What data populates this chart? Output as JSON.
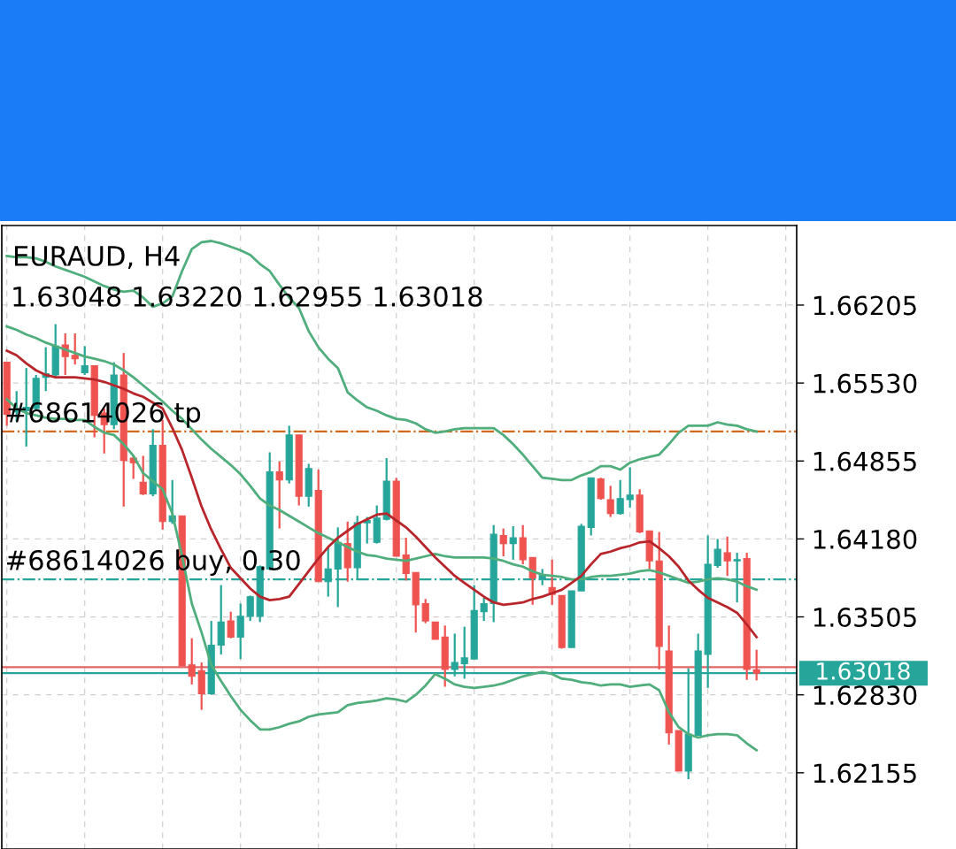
{
  "chart_data": {
    "type": "candlestick",
    "title": "EURAUD, H4",
    "subtitle": "1.63048 1.63220 1.62955 1.63018",
    "categories": [
      null,
      null,
      null,
      null,
      null,
      null,
      null,
      null,
      null,
      null,
      null,
      null,
      null,
      null,
      null,
      null,
      null,
      null,
      null,
      null,
      null,
      null,
      null,
      null,
      null,
      null,
      null,
      null,
      null,
      null,
      null,
      null,
      null,
      null,
      null,
      null,
      null,
      null,
      null,
      null,
      null,
      null,
      null,
      null,
      null,
      null,
      null,
      null,
      null,
      null,
      null,
      null,
      null,
      null,
      null,
      null,
      null,
      null,
      null,
      null,
      null,
      null,
      null,
      null,
      null,
      null,
      null,
      null,
      null,
      null,
      null,
      null,
      null,
      null,
      null,
      null,
      null,
      null
    ],
    "ohlc": [
      [
        1.6571,
        1.6571,
        1.6516,
        1.6526
      ],
      [
        1.6528,
        1.6546,
        1.652,
        1.653
      ],
      [
        1.6529,
        1.6566,
        1.6498,
        1.6532
      ],
      [
        1.6531,
        1.656,
        1.653,
        1.6557
      ],
      [
        1.6558,
        1.6584,
        1.6546,
        1.6561
      ],
      [
        1.656,
        1.6604,
        1.6557,
        1.6585
      ],
      [
        1.6586,
        1.6596,
        1.656,
        1.6576
      ],
      [
        1.6577,
        1.6596,
        1.6569,
        1.6574
      ],
      [
        1.6562,
        1.6585,
        1.656,
        1.6568
      ],
      [
        1.6568,
        1.6568,
        1.6506,
        1.6525
      ],
      [
        1.6527,
        1.6531,
        1.6492,
        1.6517
      ],
      [
        1.6517,
        1.6571,
        1.6513,
        1.656
      ],
      [
        1.656,
        1.6579,
        1.6446,
        1.6486
      ],
      [
        1.6488,
        1.649,
        1.647,
        1.6484
      ],
      [
        1.6467,
        1.649,
        1.6456,
        1.6457
      ],
      [
        1.6457,
        1.6513,
        1.6455,
        1.6499
      ],
      [
        1.6499,
        1.6521,
        1.6426,
        1.6433
      ],
      [
        1.6433,
        1.6469,
        1.6431,
        1.6438
      ],
      [
        1.6438,
        1.6438,
        1.6308,
        1.6308
      ],
      [
        1.6309,
        1.6332,
        1.6292,
        1.6299
      ],
      [
        1.6304,
        1.6311,
        1.627,
        1.6284
      ],
      [
        1.6284,
        1.6347,
        1.6283,
        1.6326
      ],
      [
        1.6326,
        1.6378,
        1.6318,
        1.6346
      ],
      [
        1.6347,
        1.6355,
        1.6332,
        1.6333
      ],
      [
        1.6333,
        1.6362,
        1.6314,
        1.6351
      ],
      [
        1.6351,
        1.6369,
        1.6347,
        1.6368
      ],
      [
        1.6351,
        1.6395,
        1.6346,
        1.6394
      ],
      [
        1.6392,
        1.6493,
        1.6391,
        1.6476
      ],
      [
        1.6476,
        1.6485,
        1.6427,
        1.6469
      ],
      [
        1.6469,
        1.6516,
        1.6466,
        1.6508
      ],
      [
        1.6508,
        1.6508,
        1.6447,
        1.6455
      ],
      [
        1.6455,
        1.6483,
        1.6446,
        1.6479
      ],
      [
        1.646,
        1.6478,
        1.6381,
        1.6381
      ],
      [
        1.6381,
        1.6411,
        1.6368,
        1.6392
      ],
      [
        1.6392,
        1.6428,
        1.6359,
        1.6415
      ],
      [
        1.6414,
        1.6433,
        1.6381,
        1.6393
      ],
      [
        1.6393,
        1.6438,
        1.6383,
        1.6432
      ],
      [
        1.6432,
        1.6437,
        1.6414,
        1.6434
      ],
      [
        1.6415,
        1.6447,
        1.6414,
        1.6436
      ],
      [
        1.6435,
        1.6488,
        1.6434,
        1.6468
      ],
      [
        1.6468,
        1.6471,
        1.6403,
        1.6403
      ],
      [
        1.6404,
        1.6419,
        1.6382,
        1.6388
      ],
      [
        1.6389,
        1.6389,
        1.6337,
        1.6361
      ],
      [
        1.6362,
        1.6366,
        1.6345,
        1.6347
      ],
      [
        1.6346,
        1.6346,
        1.6331,
        1.6331
      ],
      [
        1.6333,
        1.6343,
        1.629,
        1.6305
      ],
      [
        1.6305,
        1.6336,
        1.6299,
        1.6311
      ],
      [
        1.631,
        1.6342,
        1.6297,
        1.6315
      ],
      [
        1.6314,
        1.6378,
        1.6314,
        1.6356
      ],
      [
        1.6355,
        1.6367,
        1.6347,
        1.6362
      ],
      [
        1.6362,
        1.643,
        1.6346,
        1.6422
      ],
      [
        1.6421,
        1.6427,
        1.6403,
        1.6414
      ],
      [
        1.6414,
        1.6429,
        1.64,
        1.6419
      ],
      [
        1.6419,
        1.643,
        1.6396,
        1.64
      ],
      [
        1.6402,
        1.6402,
        1.6361,
        1.6384
      ],
      [
        1.6383,
        1.6392,
        1.6378,
        1.6387
      ],
      [
        1.6376,
        1.64,
        1.6361,
        1.637
      ],
      [
        1.6369,
        1.6369,
        1.6323,
        1.6324
      ],
      [
        1.6324,
        1.6373,
        1.6324,
        1.6373
      ],
      [
        1.6373,
        1.6431,
        1.6373,
        1.6429
      ],
      [
        1.6428,
        1.6471,
        1.6421,
        1.6471
      ],
      [
        1.647,
        1.6471,
        1.6452,
        1.6453
      ],
      [
        1.6452,
        1.6464,
        1.6437,
        1.644
      ],
      [
        1.644,
        1.6469,
        1.6439,
        1.6453
      ],
      [
        1.6452,
        1.648,
        1.6445,
        1.6456
      ],
      [
        1.6456,
        1.6461,
        1.6423,
        1.6424
      ],
      [
        1.6425,
        1.6425,
        1.6392,
        1.6399
      ],
      [
        1.6399,
        1.6424,
        1.6305,
        1.6325
      ],
      [
        1.6321,
        1.6343,
        1.624,
        1.625
      ],
      [
        1.6252,
        1.6252,
        1.6217,
        1.6217
      ],
      [
        1.6217,
        1.6306,
        1.621,
        1.6249
      ],
      [
        1.6248,
        1.6336,
        1.6248,
        1.6321
      ],
      [
        1.6318,
        1.6421,
        1.6289,
        1.6396
      ],
      [
        1.6395,
        1.6418,
        1.6393,
        1.6409
      ],
      [
        1.6406,
        1.642,
        1.6386,
        1.6399
      ],
      [
        1.6399,
        1.6406,
        1.6363,
        1.64
      ],
      [
        1.6401,
        1.6406,
        1.6296,
        1.6305
      ],
      [
        1.63048,
        1.6322,
        1.62955,
        1.63018
      ]
    ],
    "colors": [
      "#ef5350",
      "#26a69a",
      "#26a69a",
      "#26a69a",
      "#26a69a",
      "#26a69a",
      "#ef5350",
      "#ef5350",
      "#26a69a",
      "#ef5350",
      "#ef5350",
      "#26a69a",
      "#ef5350",
      "#ef5350",
      "#ef5350",
      "#26a69a",
      "#ef5350",
      "#26a69a",
      "#ef5350",
      "#ef5350",
      "#ef5350",
      "#26a69a",
      "#26a69a",
      "#ef5350",
      "#26a69a",
      "#26a69a",
      "#26a69a",
      "#26a69a",
      "#ef5350",
      "#26a69a",
      "#ef5350",
      "#26a69a",
      "#ef5350",
      "#26a69a",
      "#26a69a",
      "#ef5350",
      "#26a69a",
      "#26a69a",
      "#26a69a",
      "#26a69a",
      "#ef5350",
      "#ef5350",
      "#ef5350",
      "#ef5350",
      "#ef5350",
      "#ef5350",
      "#26a69a",
      "#26a69a",
      "#26a69a",
      "#26a69a",
      "#26a69a",
      "#ef5350",
      "#26a69a",
      "#ef5350",
      "#ef5350",
      "#26a69a",
      "#ef5350",
      "#ef5350",
      "#26a69a",
      "#26a69a",
      "#26a69a",
      "#ef5350",
      "#ef5350",
      "#26a69a",
      "#26a69a",
      "#ef5350",
      "#ef5350",
      "#ef5350",
      "#ef5350",
      "#ef5350",
      "#26a69a",
      "#26a69a",
      "#26a69a",
      "#26a69a",
      "#ef5350",
      "#26a69a",
      "#ef5350",
      "#ef5350"
    ],
    "series": [
      {
        "type": "line",
        "color": "#4fae7b",
        "values": [
          1.6663,
          1.6662,
          1.6662,
          1.6661,
          1.6658,
          1.6654,
          1.6651,
          1.6648,
          1.6645,
          1.6641,
          1.6637,
          1.6634,
          1.6632,
          1.6633,
          1.6627,
          1.6619,
          1.6622,
          1.6628,
          1.665,
          1.6669,
          1.6675,
          1.6676,
          1.6674,
          1.6671,
          1.6668,
          1.6664,
          1.6656,
          1.665,
          1.6638,
          1.6627,
          1.6618,
          1.6598,
          1.6584,
          1.6574,
          1.6566,
          1.6545,
          1.6538,
          1.6532,
          1.6529,
          1.6525,
          1.6522,
          1.6521,
          1.6518,
          1.6513,
          1.651,
          1.6511,
          1.6513,
          1.6514,
          1.6514,
          1.6514,
          1.6514,
          1.6508,
          1.65,
          1.6491,
          1.6481,
          1.6471,
          1.647,
          1.6469,
          1.6469,
          1.6473,
          1.6476,
          1.6481,
          1.6481,
          1.6478,
          1.6484,
          1.6487,
          1.6489,
          1.6491,
          1.65,
          1.651,
          1.6516,
          1.6516,
          1.6516,
          1.6519,
          1.6517,
          1.6516,
          1.6513,
          1.6511
        ]
      },
      {
        "type": "line",
        "color": "#4fae7b",
        "values": [
          1.6602,
          1.6599,
          1.6595,
          1.6592,
          1.6588,
          1.6585,
          1.6582,
          1.6579,
          1.6576,
          1.6574,
          1.6572,
          1.6569,
          1.6564,
          1.6558,
          1.6551,
          1.6544,
          1.6537,
          1.6529,
          1.6522,
          1.6513,
          1.6504,
          1.6496,
          1.6489,
          1.6482,
          1.6474,
          1.6464,
          1.6453,
          1.6447,
          1.6443,
          1.6438,
          1.6433,
          1.6428,
          1.6423,
          1.6419,
          1.6415,
          1.6411,
          1.6407,
          1.6404,
          1.6403,
          1.6401,
          1.64,
          1.6399,
          1.6401,
          1.6403,
          1.6405,
          1.6403,
          1.6402,
          1.6402,
          1.6402,
          1.6402,
          1.6401,
          1.6399,
          1.6396,
          1.6394,
          1.639,
          1.6387,
          1.6386,
          1.6385,
          1.6383,
          1.6383,
          1.6385,
          1.6386,
          1.6386,
          1.6387,
          1.6388,
          1.639,
          1.6391,
          1.6389,
          1.6386,
          1.6383,
          1.638,
          1.6381,
          1.6383,
          1.6384,
          1.6383,
          1.6381,
          1.6377,
          1.6374
        ]
      },
      {
        "type": "line",
        "color": "#4fae7b",
        "values": [
          1.6539,
          1.6531,
          1.6527,
          1.6525,
          1.6523,
          1.6522,
          1.6522,
          1.6521,
          1.6521,
          1.6515,
          1.651,
          1.6508,
          1.65,
          1.649,
          1.6475,
          1.6468,
          1.6461,
          1.644,
          1.6403,
          1.6362,
          1.6337,
          1.6309,
          1.6295,
          1.6282,
          1.627,
          1.6261,
          1.6253,
          1.6253,
          1.6255,
          1.6258,
          1.626,
          1.6264,
          1.6266,
          1.6267,
          1.6268,
          1.6274,
          1.6276,
          1.6277,
          1.6278,
          1.628,
          1.6279,
          1.6277,
          1.6283,
          1.6291,
          1.6301,
          1.6297,
          1.6292,
          1.629,
          1.6289,
          1.629,
          1.6291,
          1.6293,
          1.6296,
          1.6299,
          1.6301,
          1.6303,
          1.6301,
          1.6297,
          1.6296,
          1.6294,
          1.6293,
          1.6291,
          1.6292,
          1.6292,
          1.629,
          1.6291,
          1.6292,
          1.6287,
          1.6268,
          1.6255,
          1.6249,
          1.6246,
          1.6248,
          1.6249,
          1.6249,
          1.6248,
          1.6241,
          1.6235
        ]
      },
      {
        "type": "line",
        "color": "#b8262b",
        "values": [
          1.6581,
          1.6577,
          1.657,
          1.6564,
          1.656,
          1.6558,
          1.6558,
          1.6558,
          1.6557,
          1.6556,
          1.6554,
          1.6551,
          1.6548,
          1.6544,
          1.6541,
          1.6536,
          1.6531,
          1.6514,
          1.6495,
          1.6471,
          1.6446,
          1.6426,
          1.6409,
          1.6393,
          1.6384,
          1.6375,
          1.6368,
          1.6365,
          1.6366,
          1.6368,
          1.6379,
          1.639,
          1.6401,
          1.6411,
          1.6419,
          1.6425,
          1.6431,
          1.6435,
          1.6439,
          1.644,
          1.6434,
          1.6428,
          1.642,
          1.6411,
          1.6402,
          1.6394,
          1.6386,
          1.638,
          1.6374,
          1.6368,
          1.6363,
          1.6361,
          1.6362,
          1.6363,
          1.6366,
          1.6368,
          1.6371,
          1.6374,
          1.638,
          1.6386,
          1.6396,
          1.6405,
          1.6407,
          1.641,
          1.6412,
          1.6415,
          1.6416,
          1.641,
          1.6403,
          1.6394,
          1.6382,
          1.6374,
          1.6367,
          1.6363,
          1.6359,
          1.6354,
          1.6344,
          1.6333
        ]
      }
    ],
    "ylim": [
      1.61495,
      1.66894
    ],
    "yticks": [
      1.66205,
      {
        "value": 1.6553,
        "label": "1.65530"
      },
      1.64855,
      {
        "value": 1.6418,
        "label": "1.64180"
      },
      1.63505,
      {
        "value": 1.6283,
        "label": "1.62830"
      },
      1.62155
    ],
    "ref_lines": [
      {
        "axis": "y",
        "value": 1.6511,
        "label": "#68614026 tp",
        "color": "#d2691e",
        "line_style": "dashdot"
      },
      {
        "axis": "y",
        "value": 1.6383,
        "label": "#68614026 buy, 0.30",
        "color": "#26a69a",
        "line_style": "dashdot"
      },
      {
        "axis": "y",
        "value": 1.6307,
        "color": "#e06666",
        "line_style": "solid"
      },
      {
        "axis": "y",
        "value": 1.63018,
        "label": "1.63018",
        "color": "#26a69a",
        "line_style": "solid"
      }
    ],
    "grid": true,
    "tick_labels": "y"
  }
}
